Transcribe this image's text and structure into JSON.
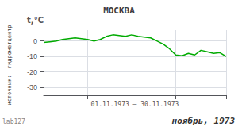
{
  "chart_data": {
    "type": "line",
    "title": "МОСКВА",
    "ylabel": "t,°C",
    "xlabel": "01.11.1973 – 30.11.1973",
    "annotations": [
      "источник:  гидрометцентр",
      "lab127",
      "ноябрь, 1973"
    ],
    "x": [
      1,
      2,
      3,
      4,
      5,
      6,
      7,
      8,
      9,
      10,
      11,
      12,
      13,
      14,
      15,
      16,
      17,
      18,
      19,
      20,
      21,
      22,
      23,
      24,
      25,
      26,
      27,
      28,
      29,
      30
    ],
    "values": [
      -1,
      -0.5,
      0,
      1,
      1.5,
      2,
      1.5,
      1,
      0,
      1,
      3,
      4,
      3.5,
      3,
      4,
      3,
      2.5,
      2,
      0,
      -2,
      -5,
      -9,
      -9.5,
      -8,
      -9,
      -6,
      -7,
      -8,
      -7.5,
      -10
    ],
    "color": "#00aa00",
    "xlim": [
      1,
      30
    ],
    "xticks": [
      1,
      8,
      15,
      22,
      30
    ],
    "ylim": [
      -35,
      7
    ],
    "yticks": [
      0,
      -10,
      -20,
      -30
    ],
    "grid": true,
    "tick_labels": "y"
  }
}
